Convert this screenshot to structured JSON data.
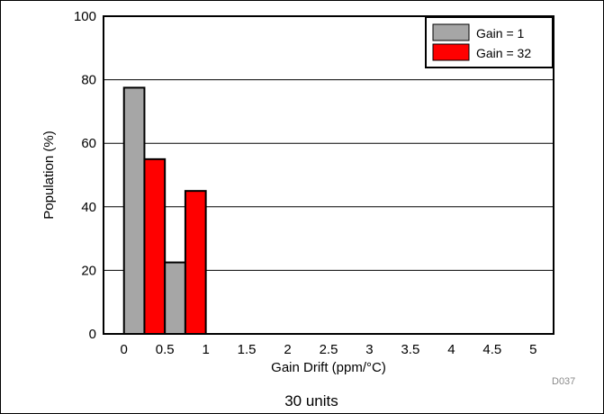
{
  "chart_data": {
    "type": "bar",
    "xlabel": "Gain Drift (ppm/°C)",
    "ylabel": "Population (%)",
    "ylim": [
      0,
      100
    ],
    "yticks": [
      "0",
      "20",
      "40",
      "60",
      "80",
      "100"
    ],
    "xticks": [
      "0",
      "0.5",
      "1",
      "1.5",
      "2",
      "2.5",
      "3",
      "3.5",
      "4",
      "4.5",
      "5"
    ],
    "grid": true,
    "legend_position": "top-right",
    "bins": [
      0.25,
      0.75
    ],
    "bin_width": 0.5,
    "series": [
      {
        "name": "Gain = 1",
        "color": "#a6a6a6",
        "values": [
          77.5,
          22.5
        ]
      },
      {
        "name": "Gain = 32",
        "color": "#ff0000",
        "values": [
          55,
          45
        ]
      }
    ]
  },
  "figure_code": "D037",
  "caption": "30 units"
}
